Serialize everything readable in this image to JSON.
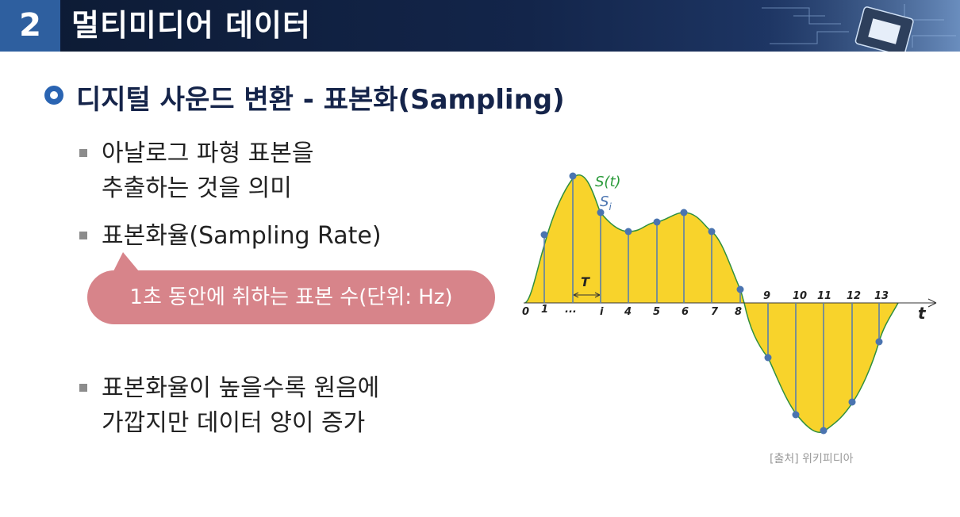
{
  "header": {
    "number": "2",
    "title": "멀티미디어 데이터"
  },
  "section": {
    "title": "디지털 사운드 변환  -  표본화(Sampling)"
  },
  "bullets": [
    {
      "lines": [
        "아날로그 파형 표본을",
        "추출하는 것을 의미"
      ]
    },
    {
      "lines": [
        "표본화율(Sampling Rate)"
      ]
    },
    {
      "lines": [
        "표본화율이 높을수록 원음에",
        "가깝지만 데이터 양이 증가"
      ]
    }
  ],
  "callout": {
    "text": "1초 동안에 취하는 표본 수(단위: Hz)"
  },
  "diagram": {
    "signal_label": "S(t)",
    "sample_label": "S",
    "sample_subscript": "i",
    "period_label": "T",
    "axis_label": "t",
    "ticks_below": [
      "0",
      "1",
      "...",
      "i",
      "4",
      "5",
      "6",
      "7",
      "8"
    ],
    "ticks_above": [
      "9",
      "10",
      "11",
      "12",
      "13"
    ],
    "colors": {
      "fill": "#f8d32b",
      "curve": "#2f8f3f",
      "sample": "#4a74b0",
      "signal_label": "#2a9a3a",
      "sample_label": "#4a74b0"
    }
  },
  "caption": "[출처] 위키피디아"
}
